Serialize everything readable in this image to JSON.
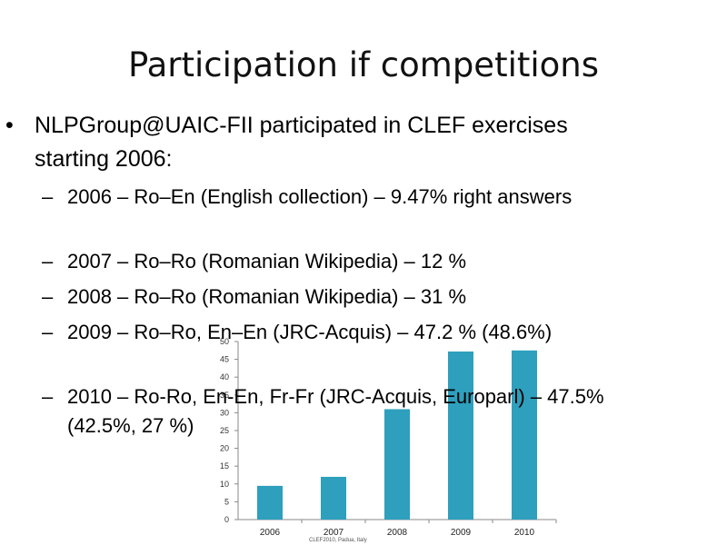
{
  "slide": {
    "title": "Participation if competitions",
    "bullet": "NLPGroup@UAIC-FII participated in CLEF exercises starting 2006:",
    "bullet_marker": "•",
    "sub_marker": "–",
    "subitems": [
      "2006 – Ro–En (English collection)     – 9.47% right answers",
      "2007 – Ro–Ro (Romanian Wikipedia) – 12 %",
      "2008 – Ro–Ro (Romanian Wikipedia) – 31 %",
      "2009 – Ro–Ro, En–En (JRC-Acquis)    – 47.2 % (48.6%)",
      "2010 – Ro-Ro, En-En, Fr-Fr (JRC-Acquis, Europarl) – 47.5% (42.5%, 27 %)"
    ],
    "footer": "CLEF2010, Padua, Italy"
  },
  "chart_data": {
    "type": "bar",
    "categories": [
      "2006",
      "2007",
      "2008",
      "2009",
      "2010"
    ],
    "values": [
      9.47,
      12,
      31,
      47.2,
      47.5
    ],
    "ylim": [
      0,
      50
    ],
    "yticks": [
      0,
      5,
      10,
      15,
      20,
      25,
      30,
      35,
      40,
      45,
      50
    ],
    "grid": false,
    "bar_color": "#2e9fbd"
  }
}
